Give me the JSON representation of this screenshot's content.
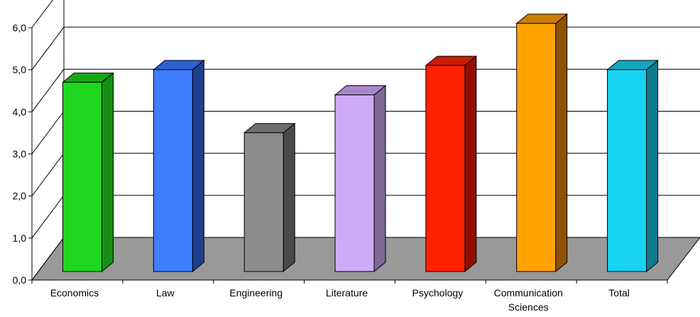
{
  "chart_data": {
    "type": "bar",
    "categories": [
      "Economics",
      "Law",
      "Engineering",
      "Literature",
      "Psychology",
      "Communication Sciences",
      "Total"
    ],
    "category_label_lines": [
      [
        "Economics"
      ],
      [
        "Law"
      ],
      [
        "Engineering"
      ],
      [
        "Literature"
      ],
      [
        "Psychology"
      ],
      [
        "Communication",
        "Sciences"
      ],
      [
        "Total"
      ]
    ],
    "values": [
      4.5,
      4.8,
      3.3,
      4.2,
      4.9,
      5.9,
      4.8
    ],
    "ylim": [
      0,
      6
    ],
    "yticks": [
      "0,0",
      "1,0",
      "2,0",
      "3,0",
      "4,0",
      "5,0",
      "6,0"
    ],
    "grid": true,
    "style": "3d",
    "bar_colors": {
      "front": [
        "#1fd71f",
        "#3f7dff",
        "#8c8c8c",
        "#cfaaf7",
        "#ff2200",
        "#ffa200",
        "#17d2f2"
      ],
      "side": [
        "#148f14",
        "#1f3f8f",
        "#4a4a4a",
        "#7d6896",
        "#8f1100",
        "#8f5200",
        "#0c7a8f"
      ],
      "top": [
        "#15a815",
        "#2c5fd1",
        "#6e6e6e",
        "#a888cc",
        "#cc1b00",
        "#cc8000",
        "#12a8c2"
      ]
    },
    "floor_color": "#999999",
    "title": "",
    "xlabel": "",
    "ylabel": ""
  }
}
